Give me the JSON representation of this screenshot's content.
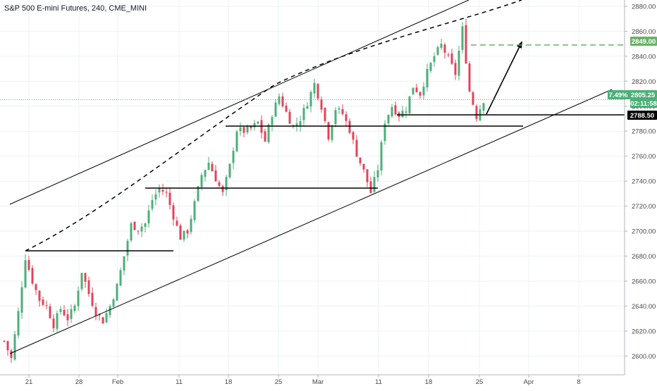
{
  "header": {
    "title": "S&P 500 E-mini Futures, 240, CME_MINI"
  },
  "colors": {
    "up": "#4caf78",
    "down": "#e0445a",
    "grid": "#eef1f4",
    "axis": "#b2b5be",
    "text": "#4a4a4a",
    "current_line": "#4caf78",
    "target_line": "#66b366",
    "level_tag": "#000000"
  },
  "price_tags": {
    "target": "2849.00",
    "current_pct": "7.49%",
    "current_price": "2805.25",
    "countdown": "02:11:58",
    "support": "2788.50"
  },
  "chart_data": {
    "type": "candlestick",
    "title": "S&P 500 E-mini Futures, 240, CME_MINI",
    "y_axis": {
      "position": "right",
      "range": [
        2585,
        2885
      ],
      "ticks": [
        "2600.00",
        "2620.00",
        "2640.00",
        "2660.00",
        "2680.00",
        "2700.00",
        "2720.00",
        "2740.00",
        "2760.00",
        "2780.00",
        "2800.00",
        "2820.00",
        "2840.00",
        "2860.00",
        "2880.00"
      ]
    },
    "x_axis": {
      "tick_labels": [
        "21",
        "28",
        "Feb",
        "11",
        "18",
        "25",
        "Mar",
        "11",
        "18",
        "25",
        "Apr",
        "8"
      ]
    },
    "grid": true,
    "levels": {
      "target": 2849.0,
      "current": 2805.25,
      "support": 2788.5
    },
    "candles_close_path": [
      [
        0,
        2612
      ],
      [
        2,
        2598
      ],
      [
        4,
        2635
      ],
      [
        6,
        2679
      ],
      [
        8,
        2660
      ],
      [
        10,
        2645
      ],
      [
        12,
        2640
      ],
      [
        14,
        2625
      ],
      [
        16,
        2638
      ],
      [
        18,
        2630
      ],
      [
        20,
        2640
      ],
      [
        22,
        2668
      ],
      [
        24,
        2650
      ],
      [
        26,
        2635
      ],
      [
        28,
        2628
      ],
      [
        30,
        2640
      ],
      [
        32,
        2656
      ],
      [
        34,
        2680
      ],
      [
        36,
        2705
      ],
      [
        38,
        2702
      ],
      [
        40,
        2706
      ],
      [
        42,
        2725
      ],
      [
        44,
        2734
      ],
      [
        46,
        2730
      ],
      [
        48,
        2712
      ],
      [
        50,
        2695
      ],
      [
        52,
        2700
      ],
      [
        54,
        2722
      ],
      [
        56,
        2745
      ],
      [
        58,
        2755
      ],
      [
        60,
        2742
      ],
      [
        62,
        2730
      ],
      [
        64,
        2752
      ],
      [
        66,
        2781
      ],
      [
        68,
        2780
      ],
      [
        70,
        2782
      ],
      [
        72,
        2787
      ],
      [
        74,
        2772
      ],
      [
        76,
        2794
      ],
      [
        78,
        2808
      ],
      [
        80,
        2795
      ],
      [
        82,
        2783
      ],
      [
        84,
        2790
      ],
      [
        86,
        2803
      ],
      [
        88,
        2818
      ],
      [
        90,
        2800
      ],
      [
        92,
        2776
      ],
      [
        94,
        2798
      ],
      [
        96,
        2794
      ],
      [
        98,
        2781
      ],
      [
        100,
        2762
      ],
      [
        102,
        2748
      ],
      [
        104,
        2731
      ],
      [
        106,
        2750
      ],
      [
        108,
        2788
      ],
      [
        110,
        2800
      ],
      [
        112,
        2793
      ],
      [
        114,
        2798
      ],
      [
        116,
        2816
      ],
      [
        118,
        2810
      ],
      [
        120,
        2827
      ],
      [
        122,
        2840
      ],
      [
        124,
        2849
      ],
      [
        126,
        2838
      ],
      [
        128,
        2826
      ],
      [
        130,
        2862
      ],
      [
        132,
        2812
      ],
      [
        134,
        2792
      ],
      [
        136,
        2805
      ]
    ]
  }
}
